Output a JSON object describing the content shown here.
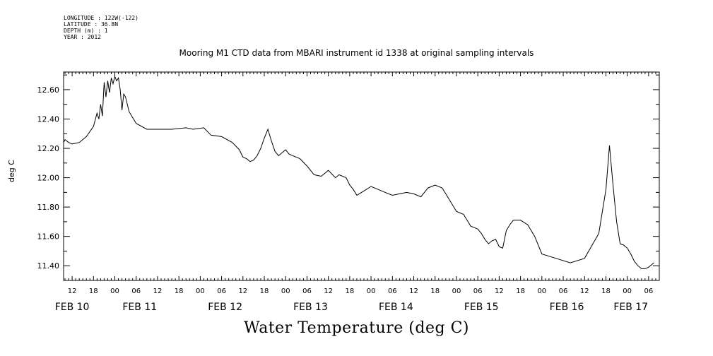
{
  "header_meta": {
    "longitude": "LONGITUDE : 122W(-122)",
    "latitude": "LATITUDE : 36.8N",
    "depth": "DEPTH (m) : 1",
    "year": "YEAR : 2012"
  },
  "chart_data": {
    "type": "line",
    "title": "Mooring M1 CTD data from MBARI instrument id 1338 at original sampling intervals",
    "xlabel": "Water Temperature (deg C)",
    "ylabel": "deg C",
    "ylim": [
      11.3,
      12.72
    ],
    "y_ticks": [
      "12.60",
      "12.40",
      "12.20",
      "12.00",
      "11.80",
      "11.60",
      "11.40"
    ],
    "y_tick_values": [
      12.6,
      12.4,
      12.2,
      12.0,
      11.8,
      11.6,
      11.4
    ],
    "xlim_hours": [
      -14.4,
      153.0
    ],
    "x_hour_ticks": [
      "12",
      "18",
      "00",
      "06",
      "12",
      "18",
      "00",
      "06",
      "12",
      "18",
      "00",
      "06",
      "12",
      "18",
      "00",
      "06",
      "12",
      "18",
      "00",
      "06",
      "12",
      "18",
      "00",
      "06",
      "12",
      "18",
      "00",
      "06"
    ],
    "x_hour_tick_hours": [
      -12,
      -6,
      0,
      6,
      12,
      18,
      24,
      30,
      36,
      42,
      48,
      54,
      60,
      66,
      72,
      78,
      84,
      90,
      96,
      102,
      108,
      114,
      120,
      126,
      132,
      138,
      144,
      150
    ],
    "x_day_labels": [
      "FEB 10",
      "FEB 11",
      "FEB 12",
      "FEB 13",
      "FEB 14",
      "FEB 15",
      "FEB 16",
      "FEB 17"
    ],
    "x_day_label_hours": [
      -12,
      7,
      31,
      55,
      79,
      103,
      127,
      145
    ],
    "x_hours_note": "hours relative to FEB 11 00:00",
    "series": [
      {
        "x": [
          -14.4,
          -14,
          -13,
          -12,
          -10,
          -8,
          -6,
          -5,
          -4.5,
          -4,
          -3.5,
          -3,
          -2.5,
          -2,
          -1.5,
          -1,
          -0.5,
          0,
          0.5,
          1,
          1.5,
          2,
          2.5,
          3,
          4,
          6,
          9,
          12,
          16,
          20,
          22,
          25,
          27,
          30,
          33,
          35,
          36,
          37,
          38,
          39,
          40,
          41,
          42,
          43,
          44,
          45,
          46,
          47,
          48,
          49,
          50,
          52,
          54,
          56,
          58,
          60,
          62,
          63,
          64,
          65,
          66,
          67,
          68,
          70,
          72,
          74,
          76,
          78,
          80,
          82,
          84,
          86,
          88,
          90,
          92,
          94,
          96,
          98,
          100,
          101,
          102,
          103,
          104,
          105,
          106,
          107,
          108,
          109,
          110,
          111,
          112,
          114,
          116,
          118,
          120,
          124,
          128,
          132,
          136,
          138,
          139,
          140,
          141,
          142,
          143,
          144,
          145,
          146,
          147,
          148,
          149,
          150,
          151,
          151.5
        ],
        "y": [
          12.24,
          12.26,
          12.24,
          12.23,
          12.24,
          12.28,
          12.35,
          12.44,
          12.4,
          12.5,
          12.42,
          12.65,
          12.55,
          12.66,
          12.58,
          12.68,
          12.64,
          12.69,
          12.66,
          12.68,
          12.6,
          12.46,
          12.57,
          12.55,
          12.45,
          12.37,
          12.33,
          12.33,
          12.33,
          12.34,
          12.33,
          12.34,
          12.29,
          12.28,
          12.24,
          12.19,
          12.14,
          12.13,
          12.11,
          12.12,
          12.15,
          12.2,
          12.27,
          12.33,
          12.25,
          12.18,
          12.15,
          12.17,
          12.19,
          12.16,
          12.15,
          12.13,
          12.08,
          12.02,
          12.01,
          12.05,
          12.0,
          12.02,
          12.01,
          12.0,
          11.95,
          11.92,
          11.88,
          11.91,
          11.94,
          11.92,
          11.9,
          11.88,
          11.89,
          11.9,
          11.89,
          11.87,
          11.93,
          11.95,
          11.93,
          11.85,
          11.77,
          11.75,
          11.67,
          11.66,
          11.65,
          11.62,
          11.58,
          11.55,
          11.57,
          11.58,
          11.53,
          11.52,
          11.64,
          11.68,
          11.71,
          11.71,
          11.68,
          11.6,
          11.48,
          11.45,
          11.42,
          11.45,
          11.62,
          11.92,
          12.22,
          11.95,
          11.7,
          11.55,
          11.54,
          11.52,
          11.48,
          11.43,
          11.4,
          11.38,
          11.38,
          11.39,
          11.41,
          11.42
        ]
      }
    ]
  }
}
